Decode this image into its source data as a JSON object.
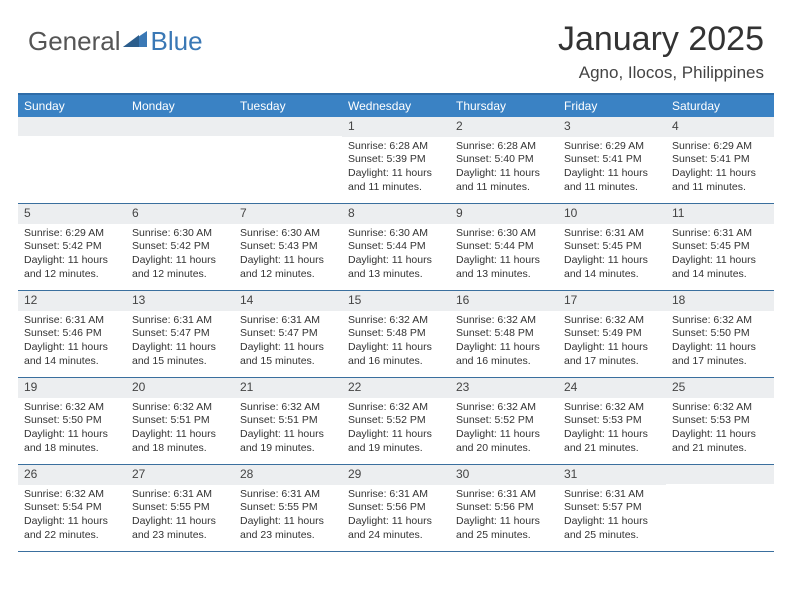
{
  "logo": {
    "general": "General",
    "blue": "Blue"
  },
  "title": "January 2025",
  "location": "Agno, Ilocos, Philippines",
  "colors": {
    "headerBar": "#3a82c4",
    "borderTop": "#2e6ca8",
    "rowBorder": "#3a6f9e",
    "dayBar": "#eceef0",
    "logoBlue": "#3a78b5"
  },
  "weekdays": [
    "Sunday",
    "Monday",
    "Tuesday",
    "Wednesday",
    "Thursday",
    "Friday",
    "Saturday"
  ],
  "weeks": [
    [
      {
        "num": "",
        "sunrise": "",
        "sunset": "",
        "daylight": ""
      },
      {
        "num": "",
        "sunrise": "",
        "sunset": "",
        "daylight": ""
      },
      {
        "num": "",
        "sunrise": "",
        "sunset": "",
        "daylight": ""
      },
      {
        "num": "1",
        "sunrise": "Sunrise: 6:28 AM",
        "sunset": "Sunset: 5:39 PM",
        "daylight": "Daylight: 11 hours and 11 minutes."
      },
      {
        "num": "2",
        "sunrise": "Sunrise: 6:28 AM",
        "sunset": "Sunset: 5:40 PM",
        "daylight": "Daylight: 11 hours and 11 minutes."
      },
      {
        "num": "3",
        "sunrise": "Sunrise: 6:29 AM",
        "sunset": "Sunset: 5:41 PM",
        "daylight": "Daylight: 11 hours and 11 minutes."
      },
      {
        "num": "4",
        "sunrise": "Sunrise: 6:29 AM",
        "sunset": "Sunset: 5:41 PM",
        "daylight": "Daylight: 11 hours and 11 minutes."
      }
    ],
    [
      {
        "num": "5",
        "sunrise": "Sunrise: 6:29 AM",
        "sunset": "Sunset: 5:42 PM",
        "daylight": "Daylight: 11 hours and 12 minutes."
      },
      {
        "num": "6",
        "sunrise": "Sunrise: 6:30 AM",
        "sunset": "Sunset: 5:42 PM",
        "daylight": "Daylight: 11 hours and 12 minutes."
      },
      {
        "num": "7",
        "sunrise": "Sunrise: 6:30 AM",
        "sunset": "Sunset: 5:43 PM",
        "daylight": "Daylight: 11 hours and 12 minutes."
      },
      {
        "num": "8",
        "sunrise": "Sunrise: 6:30 AM",
        "sunset": "Sunset: 5:44 PM",
        "daylight": "Daylight: 11 hours and 13 minutes."
      },
      {
        "num": "9",
        "sunrise": "Sunrise: 6:30 AM",
        "sunset": "Sunset: 5:44 PM",
        "daylight": "Daylight: 11 hours and 13 minutes."
      },
      {
        "num": "10",
        "sunrise": "Sunrise: 6:31 AM",
        "sunset": "Sunset: 5:45 PM",
        "daylight": "Daylight: 11 hours and 14 minutes."
      },
      {
        "num": "11",
        "sunrise": "Sunrise: 6:31 AM",
        "sunset": "Sunset: 5:45 PM",
        "daylight": "Daylight: 11 hours and 14 minutes."
      }
    ],
    [
      {
        "num": "12",
        "sunrise": "Sunrise: 6:31 AM",
        "sunset": "Sunset: 5:46 PM",
        "daylight": "Daylight: 11 hours and 14 minutes."
      },
      {
        "num": "13",
        "sunrise": "Sunrise: 6:31 AM",
        "sunset": "Sunset: 5:47 PM",
        "daylight": "Daylight: 11 hours and 15 minutes."
      },
      {
        "num": "14",
        "sunrise": "Sunrise: 6:31 AM",
        "sunset": "Sunset: 5:47 PM",
        "daylight": "Daylight: 11 hours and 15 minutes."
      },
      {
        "num": "15",
        "sunrise": "Sunrise: 6:32 AM",
        "sunset": "Sunset: 5:48 PM",
        "daylight": "Daylight: 11 hours and 16 minutes."
      },
      {
        "num": "16",
        "sunrise": "Sunrise: 6:32 AM",
        "sunset": "Sunset: 5:48 PM",
        "daylight": "Daylight: 11 hours and 16 minutes."
      },
      {
        "num": "17",
        "sunrise": "Sunrise: 6:32 AM",
        "sunset": "Sunset: 5:49 PM",
        "daylight": "Daylight: 11 hours and 17 minutes."
      },
      {
        "num": "18",
        "sunrise": "Sunrise: 6:32 AM",
        "sunset": "Sunset: 5:50 PM",
        "daylight": "Daylight: 11 hours and 17 minutes."
      }
    ],
    [
      {
        "num": "19",
        "sunrise": "Sunrise: 6:32 AM",
        "sunset": "Sunset: 5:50 PM",
        "daylight": "Daylight: 11 hours and 18 minutes."
      },
      {
        "num": "20",
        "sunrise": "Sunrise: 6:32 AM",
        "sunset": "Sunset: 5:51 PM",
        "daylight": "Daylight: 11 hours and 18 minutes."
      },
      {
        "num": "21",
        "sunrise": "Sunrise: 6:32 AM",
        "sunset": "Sunset: 5:51 PM",
        "daylight": "Daylight: 11 hours and 19 minutes."
      },
      {
        "num": "22",
        "sunrise": "Sunrise: 6:32 AM",
        "sunset": "Sunset: 5:52 PM",
        "daylight": "Daylight: 11 hours and 19 minutes."
      },
      {
        "num": "23",
        "sunrise": "Sunrise: 6:32 AM",
        "sunset": "Sunset: 5:52 PM",
        "daylight": "Daylight: 11 hours and 20 minutes."
      },
      {
        "num": "24",
        "sunrise": "Sunrise: 6:32 AM",
        "sunset": "Sunset: 5:53 PM",
        "daylight": "Daylight: 11 hours and 21 minutes."
      },
      {
        "num": "25",
        "sunrise": "Sunrise: 6:32 AM",
        "sunset": "Sunset: 5:53 PM",
        "daylight": "Daylight: 11 hours and 21 minutes."
      }
    ],
    [
      {
        "num": "26",
        "sunrise": "Sunrise: 6:32 AM",
        "sunset": "Sunset: 5:54 PM",
        "daylight": "Daylight: 11 hours and 22 minutes."
      },
      {
        "num": "27",
        "sunrise": "Sunrise: 6:31 AM",
        "sunset": "Sunset: 5:55 PM",
        "daylight": "Daylight: 11 hours and 23 minutes."
      },
      {
        "num": "28",
        "sunrise": "Sunrise: 6:31 AM",
        "sunset": "Sunset: 5:55 PM",
        "daylight": "Daylight: 11 hours and 23 minutes."
      },
      {
        "num": "29",
        "sunrise": "Sunrise: 6:31 AM",
        "sunset": "Sunset: 5:56 PM",
        "daylight": "Daylight: 11 hours and 24 minutes."
      },
      {
        "num": "30",
        "sunrise": "Sunrise: 6:31 AM",
        "sunset": "Sunset: 5:56 PM",
        "daylight": "Daylight: 11 hours and 25 minutes."
      },
      {
        "num": "31",
        "sunrise": "Sunrise: 6:31 AM",
        "sunset": "Sunset: 5:57 PM",
        "daylight": "Daylight: 11 hours and 25 minutes."
      },
      {
        "num": "",
        "sunrise": "",
        "sunset": "",
        "daylight": ""
      }
    ]
  ]
}
